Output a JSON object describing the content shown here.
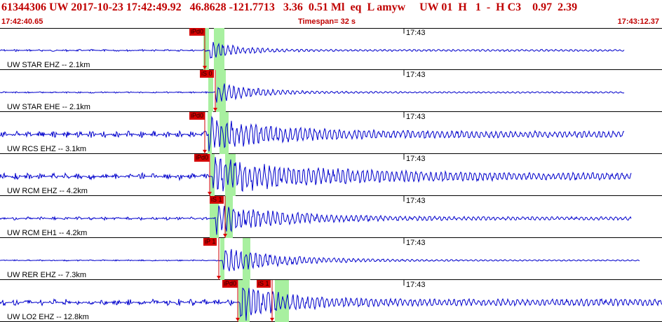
{
  "header": {
    "title": "61344306 UW 2017-10-23 17:42:49.92   46.8628 -121.7713   3.36  0.51 Ml  eq  L amyw     UW 01  H   1  -  H C3    0.97  2.39",
    "start_time": "17:42:40.65",
    "timespan": "Timespan=  32 s",
    "end_time": "17:43:12.37"
  },
  "traces": [
    {
      "label": "UW STAR EHZ -- 2.1km",
      "time_tick": "17:43",
      "picks": [
        {
          "text": "iPd0",
          "x": 270
        }
      ],
      "green": [
        [
          290,
          298
        ],
        [
          305,
          320
        ]
      ],
      "onset": 300,
      "amp": 14,
      "noise": 1.5,
      "end": 890,
      "decay": 40
    },
    {
      "label": "UW STAR EHE -- 2.1km",
      "time_tick": "17:43",
      "picks": [
        {
          "text": "iS 0",
          "x": 285
        }
      ],
      "green": [
        [
          297,
          304
        ],
        [
          308,
          322
        ]
      ],
      "onset": 308,
      "amp": 16,
      "noise": 1.2,
      "end": 890,
      "decay": 50
    },
    {
      "label": "UW RCS EHZ -- 3.1km",
      "time_tick": "17:43",
      "picks": [
        {
          "text": "iPd0",
          "x": 270
        }
      ],
      "green": [
        [
          296,
          302
        ],
        [
          313,
          326
        ]
      ],
      "onset": 298,
      "amp": 22,
      "noise": 5,
      "end": 890,
      "decay": 90
    },
    {
      "label": "UW RCM EHZ -- 4.2km",
      "time_tick": "17:43",
      "picks": [
        {
          "text": "iPd0",
          "x": 277
        }
      ],
      "green": [
        [
          300,
          306
        ],
        [
          321,
          336
        ]
      ],
      "onset": 303,
      "amp": 24,
      "noise": 5,
      "end": 900,
      "decay": 140
    },
    {
      "label": "UW RCM EH1 -- 4.2km",
      "time_tick": "17:43",
      "picks": [
        {
          "text": "iS 1",
          "x": 299
        }
      ],
      "green": [
        [
          299,
          312
        ],
        [
          321,
          332
        ]
      ],
      "onset": 308,
      "amp": 22,
      "noise": 2.5,
      "end": 900,
      "decay": 90
    },
    {
      "label": "UW RER EHZ -- 7.3km",
      "time_tick": "17:43",
      "picks": [
        {
          "text": "iP 1",
          "x": 290
        }
      ],
      "green": [
        [
          314,
          320
        ],
        [
          346,
          357
        ]
      ],
      "onset": 318,
      "amp": 20,
      "noise": 1,
      "end": 912,
      "decay": 80
    },
    {
      "label": "UW LO2 EHZ -- 12.8km",
      "time_tick": "17:43",
      "picks": [
        {
          "text": "iPd0",
          "x": 317
        },
        {
          "text": "iS 1",
          "x": 366
        }
      ],
      "green": [
        [
          340,
          356
        ],
        [
          392,
          412
        ]
      ],
      "onset": 343,
      "amp": 26,
      "noise": 5,
      "end": 944,
      "decay": 60
    }
  ],
  "colors": {
    "trace": "#0000cc",
    "pick_box": "#dd0000",
    "window": "#a8f0a0",
    "header_text": "#c00000"
  }
}
